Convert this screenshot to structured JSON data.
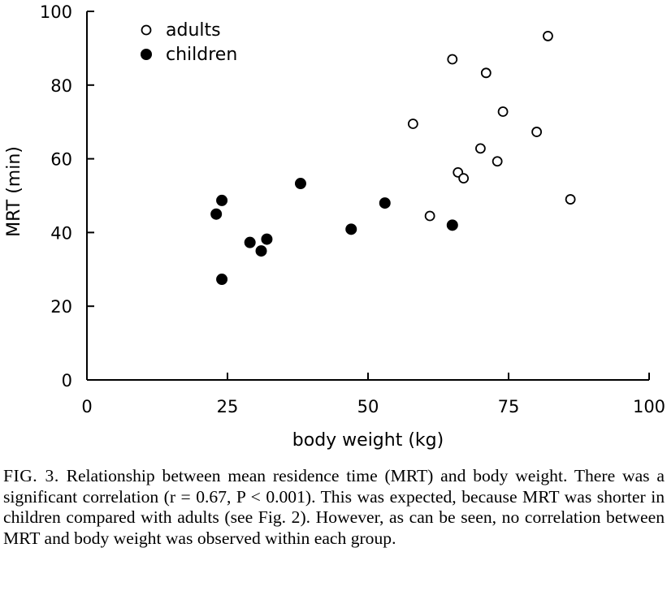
{
  "chart_data": {
    "type": "scatter",
    "xlabel": "body weight (kg)",
    "ylabel": "MRT (min)",
    "xlim": [
      0,
      100
    ],
    "ylim": [
      0,
      100
    ],
    "x_ticks": [
      0,
      25,
      50,
      75,
      100
    ],
    "y_ticks": [
      0,
      20,
      40,
      60,
      80,
      100
    ],
    "x_tick_labels": [
      "0",
      "25",
      "50",
      "75",
      "100"
    ],
    "y_tick_labels": [
      "0",
      "20",
      "40",
      "60",
      "80",
      "100"
    ],
    "grid": false,
    "legend_position": "top-left",
    "series": [
      {
        "name": "adults",
        "marker": "open-circle",
        "points": [
          [
            58,
            69.5
          ],
          [
            61,
            44.5
          ],
          [
            65,
            87
          ],
          [
            66,
            56.3
          ],
          [
            67,
            54.7
          ],
          [
            70,
            62.8
          ],
          [
            71,
            83.3
          ],
          [
            73,
            59.3
          ],
          [
            74,
            72.8
          ],
          [
            80,
            67.3
          ],
          [
            82,
            93.3
          ],
          [
            86,
            49
          ]
        ]
      },
      {
        "name": "children",
        "marker": "filled-circle",
        "points": [
          [
            23,
            45
          ],
          [
            24,
            48.7
          ],
          [
            24,
            27.3
          ],
          [
            29,
            37.3
          ],
          [
            31,
            35
          ],
          [
            32,
            38.2
          ],
          [
            38,
            53.3
          ],
          [
            47,
            40.9
          ],
          [
            53,
            48
          ],
          [
            65,
            42
          ]
        ]
      }
    ]
  },
  "caption": {
    "fig_label": "FIG. 3.",
    "text": "Relationship between mean residence time (MRT) and body weight. There was a significant correlation (r = 0.67, P < 0.001). This was expected, because MRT was shorter in children compared with adults (see Fig. 2). However, as can be seen, no correlation between MRT and body weight was observed within each group."
  }
}
